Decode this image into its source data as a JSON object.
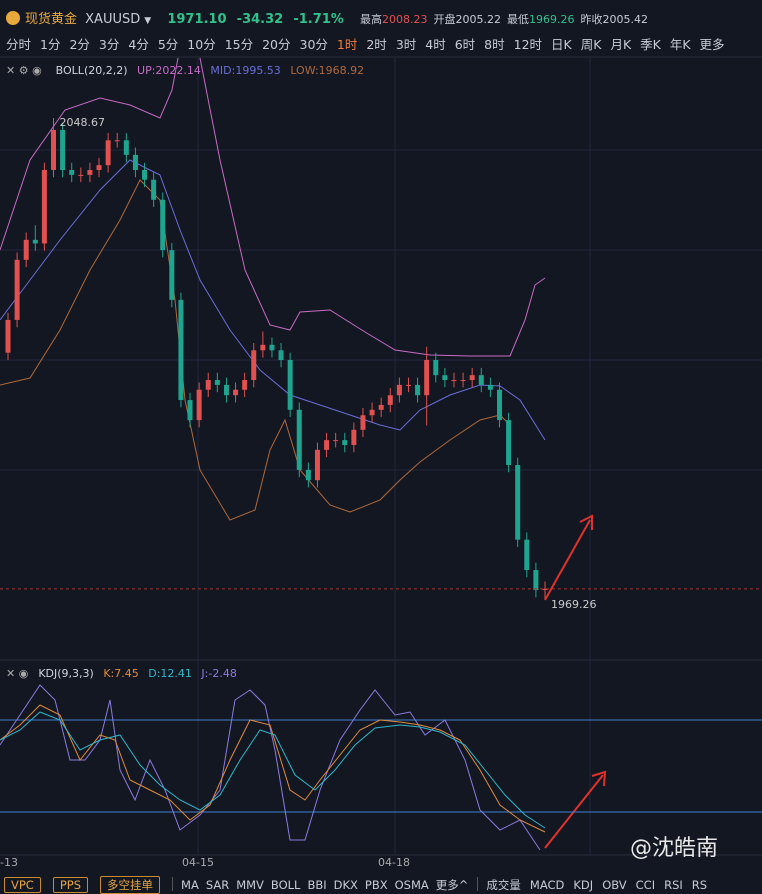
{
  "header": {
    "name": "现货黄金",
    "symbol": "XAUUSD",
    "last": "1971.10",
    "change": "-34.32",
    "change_pct": "-1.71%",
    "stats": [
      {
        "label": "最高",
        "value": "2008.23"
      },
      {
        "label": "开盘",
        "value": "2005.22"
      },
      {
        "label": "最低",
        "value": "1969.26"
      },
      {
        "label": "昨收",
        "value": "2005.42"
      }
    ]
  },
  "timeframes": [
    "分时",
    "1分",
    "2分",
    "3分",
    "4分",
    "5分",
    "10分",
    "15分",
    "20分",
    "30分",
    "1时",
    "2时",
    "3时",
    "4时",
    "6时",
    "8时",
    "12时",
    "日K",
    "周K",
    "月K",
    "季K",
    "年K",
    "更多"
  ],
  "active_timeframe": 10,
  "boll": {
    "name": "BOLL(20,2,2)",
    "up": "UP:2022.14",
    "mid": "MID:1995.53",
    "low": "LOW:1968.92"
  },
  "kdj": {
    "name": "KDJ(9,3,3)",
    "k": "K:7.45",
    "d": "D:12.41",
    "j": "J:-2.48"
  },
  "candles": [
    [
      2010.0,
      2016.6,
      2008.8,
      2015.4
    ],
    [
      2015.4,
      2026.5,
      2014.2,
      2025.3
    ],
    [
      2025.3,
      2029.8,
      2024.1,
      2028.6
    ],
    [
      2028.6,
      2031.0,
      2026.8,
      2028.0
    ],
    [
      2028.0,
      2041.3,
      2026.8,
      2040.1
    ],
    [
      2040.1,
      2048.67,
      2038.9,
      2046.7
    ],
    [
      2046.7,
      2047.9,
      2038.9,
      2040.1
    ],
    [
      2040.1,
      2041.3,
      2038.1,
      2039.3
    ],
    [
      2039.3,
      2040.5,
      2038.1,
      2039.3
    ],
    [
      2039.3,
      2041.3,
      2038.1,
      2040.1
    ],
    [
      2040.1,
      2042.1,
      2038.9,
      2040.9
    ],
    [
      2040.9,
      2046.2,
      2039.7,
      2045.0
    ],
    [
      2045.0,
      2046.2,
      2043.8,
      2045.0
    ],
    [
      2045.0,
      2046.2,
      2041.4,
      2042.6
    ],
    [
      2042.6,
      2043.8,
      2038.9,
      2040.1
    ],
    [
      2040.1,
      2041.3,
      2037.3,
      2038.5
    ],
    [
      2038.5,
      2039.7,
      2034.0,
      2035.2
    ],
    [
      2035.2,
      2036.4,
      2025.7,
      2026.9
    ],
    [
      2026.9,
      2028.1,
      2017.5,
      2018.7
    ],
    [
      2018.7,
      2019.9,
      2001.0,
      2002.2
    ],
    [
      2002.2,
      2003.4,
      1997.7,
      1998.9
    ],
    [
      1998.9,
      2005.1,
      1997.7,
      2003.9
    ],
    [
      2003.9,
      2006.7,
      2002.7,
      2005.5
    ],
    [
      2005.5,
      2006.7,
      2003.5,
      2004.7
    ],
    [
      2004.7,
      2005.9,
      2001.8,
      2003.0
    ],
    [
      2003.0,
      2005.1,
      2001.8,
      2003.9
    ],
    [
      2003.9,
      2006.7,
      2002.7,
      2005.5
    ],
    [
      2005.5,
      2011.6,
      2004.3,
      2010.4
    ],
    [
      2010.4,
      2013.5,
      2009.2,
      2011.3
    ],
    [
      2011.3,
      2012.5,
      2009.2,
      2010.4
    ],
    [
      2010.4,
      2011.6,
      2007.6,
      2008.8
    ],
    [
      2008.8,
      2010.0,
      1999.4,
      2000.6
    ],
    [
      2000.6,
      2001.8,
      1989.5,
      1990.7
    ],
    [
      1990.7,
      1991.9,
      1987.8,
      1989.0
    ],
    [
      1989.0,
      1995.2,
      1987.8,
      1994.0
    ],
    [
      1994.0,
      1996.8,
      1992.8,
      1995.6
    ],
    [
      1995.6,
      1996.8,
      1994.4,
      1995.6
    ],
    [
      1995.6,
      1996.8,
      1993.6,
      1994.8
    ],
    [
      1994.8,
      1998.5,
      1993.6,
      1997.3
    ],
    [
      1997.3,
      2000.9,
      1996.1,
      1999.7
    ],
    [
      1999.7,
      2001.8,
      1998.5,
      2000.6
    ],
    [
      2000.6,
      2002.6,
      1999.4,
      2001.4
    ],
    [
      2001.4,
      2004.2,
      2000.2,
      2003.0
    ],
    [
      2003.0,
      2005.9,
      2001.8,
      2004.7
    ],
    [
      2004.7,
      2005.9,
      2003.5,
      2004.7
    ],
    [
      2004.7,
      2005.9,
      2001.8,
      2003.0
    ],
    [
      2003.0,
      2011.0,
      1998.0,
      2008.8
    ],
    [
      2008.8,
      2010.0,
      2005.1,
      2006.3
    ],
    [
      2006.3,
      2007.5,
      2004.3,
      2005.5
    ],
    [
      2005.5,
      2006.7,
      2004.3,
      2005.5
    ],
    [
      2005.5,
      2006.7,
      2004.3,
      2005.5
    ],
    [
      2005.5,
      2007.5,
      2004.3,
      2006.3
    ],
    [
      2006.3,
      2007.5,
      2003.5,
      2004.7
    ],
    [
      2004.7,
      2005.9,
      2002.7,
      2003.9
    ],
    [
      2003.9,
      2005.1,
      1997.7,
      1998.9
    ],
    [
      1998.9,
      2000.1,
      1990.3,
      1991.5
    ],
    [
      1991.5,
      1992.7,
      1978.0,
      1979.2
    ],
    [
      1979.2,
      1980.4,
      1973.0,
      1974.2
    ],
    [
      1974.2,
      1975.4,
      1969.7,
      1970.9
    ],
    [
      1970.9,
      1972.3,
      1969.26,
      1971.1
    ]
  ],
  "up_color": "#e0514f",
  "down_color": "#1fa58f",
  "dates": [
    "-13",
    "04-15",
    "04-18"
  ],
  "bottom_left": [
    "VPC",
    "PPS",
    "多空挂单"
  ],
  "bottom_mid": [
    "MA",
    "SAR",
    "MMV",
    "BOLL",
    "BBI",
    "DKX",
    "PBX",
    "OSMA",
    "更多^"
  ],
  "bottom_right": [
    "成交量",
    "MACD",
    "KDJ",
    "OBV",
    "CCI",
    "RSI",
    "RS"
  ],
  "watermark": "@沈皓南"
}
